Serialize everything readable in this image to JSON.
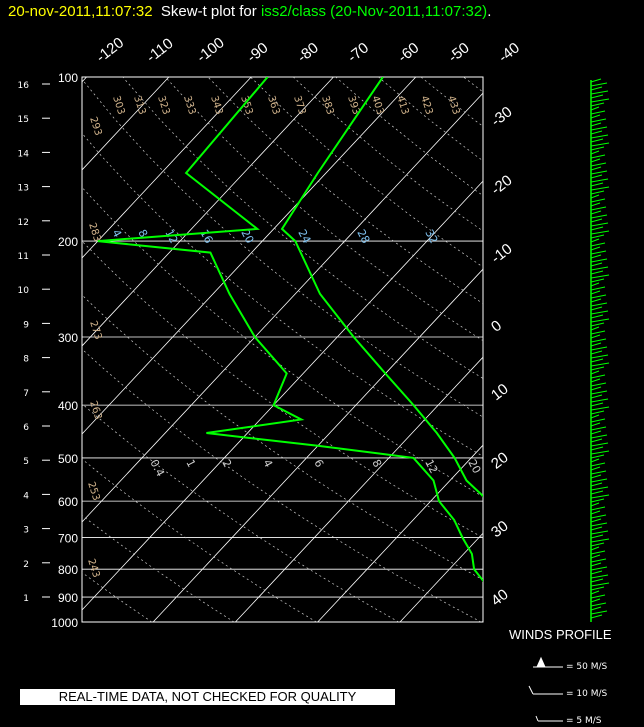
{
  "title": {
    "time": "20-nov-2011,11:07:32",
    "main": "Skew-t plot for",
    "source": "iss2/class (20-Nov-2011,11:07:32)",
    "end": "."
  },
  "winds_label": "WINDS PROFILE",
  "wind_key": [
    "= 50 M/S",
    "= 10 M/S",
    "= 5 M/S"
  ],
  "notice": "REAL-TIME DATA, NOT CHECKED FOR QUALITY",
  "colors": {
    "background": "#000000",
    "trace": "#00ff00",
    "grid": "#ffffff",
    "theta": "#d2b48c",
    "mixing": "#7ec0ee"
  },
  "chart_data": {
    "type": "line",
    "subtype": "skew-t",
    "pressure_levels": [
      100,
      200,
      300,
      400,
      500,
      600,
      700,
      800,
      900,
      1000
    ],
    "height_km_labels": [
      16,
      15,
      14,
      13,
      12,
      11,
      10,
      9,
      8,
      7,
      6,
      5,
      4,
      3,
      2,
      1
    ],
    "top_temp_labels": [
      -120,
      -110,
      -100,
      -90,
      -80,
      -70,
      -60,
      -50,
      -40
    ],
    "right_temp_labels": [
      -30,
      -20,
      -10,
      0,
      10,
      20,
      30,
      40
    ],
    "theta_labels": [
      293,
      303,
      313,
      323,
      333,
      343,
      353,
      363,
      373,
      383,
      393,
      403,
      413,
      423,
      433,
      283,
      273,
      263,
      253,
      243
    ],
    "mixing_ratio_labels_upper": [
      4,
      8,
      12,
      16,
      20,
      24,
      28,
      32
    ],
    "mixing_ratio_labels_lower": [
      0.4,
      1,
      2,
      4,
      6,
      8,
      12,
      20
    ],
    "grid": true,
    "series": [
      {
        "kind": "temperature",
        "pressure": [
          1000,
          950,
          900,
          850,
          800,
          750,
          700,
          650,
          600,
          550,
          500,
          450,
          400,
          350,
          300,
          250,
          200,
          190,
          150,
          100
        ],
        "temperature": [
          17,
          14,
          11,
          8,
          6,
          5,
          3,
          0,
          -3,
          -8,
          -12,
          -17,
          -23,
          -30,
          -38,
          -47,
          -56,
          -59,
          -61,
          -64
        ]
      },
      {
        "kind": "dewpoint",
        "pressure": [
          1000,
          950,
          900,
          850,
          800,
          750,
          700,
          650,
          600,
          550,
          500,
          475,
          450,
          425,
          400,
          350,
          300,
          250,
          210,
          200,
          190,
          150,
          100
        ],
        "dewpoint": [
          15,
          12,
          9,
          6,
          3,
          1,
          -2,
          -5,
          -9,
          -12,
          -17,
          -30,
          -45,
          -35,
          -40,
          -42,
          -50,
          -58,
          -65,
          -80,
          -62,
          -77,
          -78
        ]
      }
    ]
  }
}
